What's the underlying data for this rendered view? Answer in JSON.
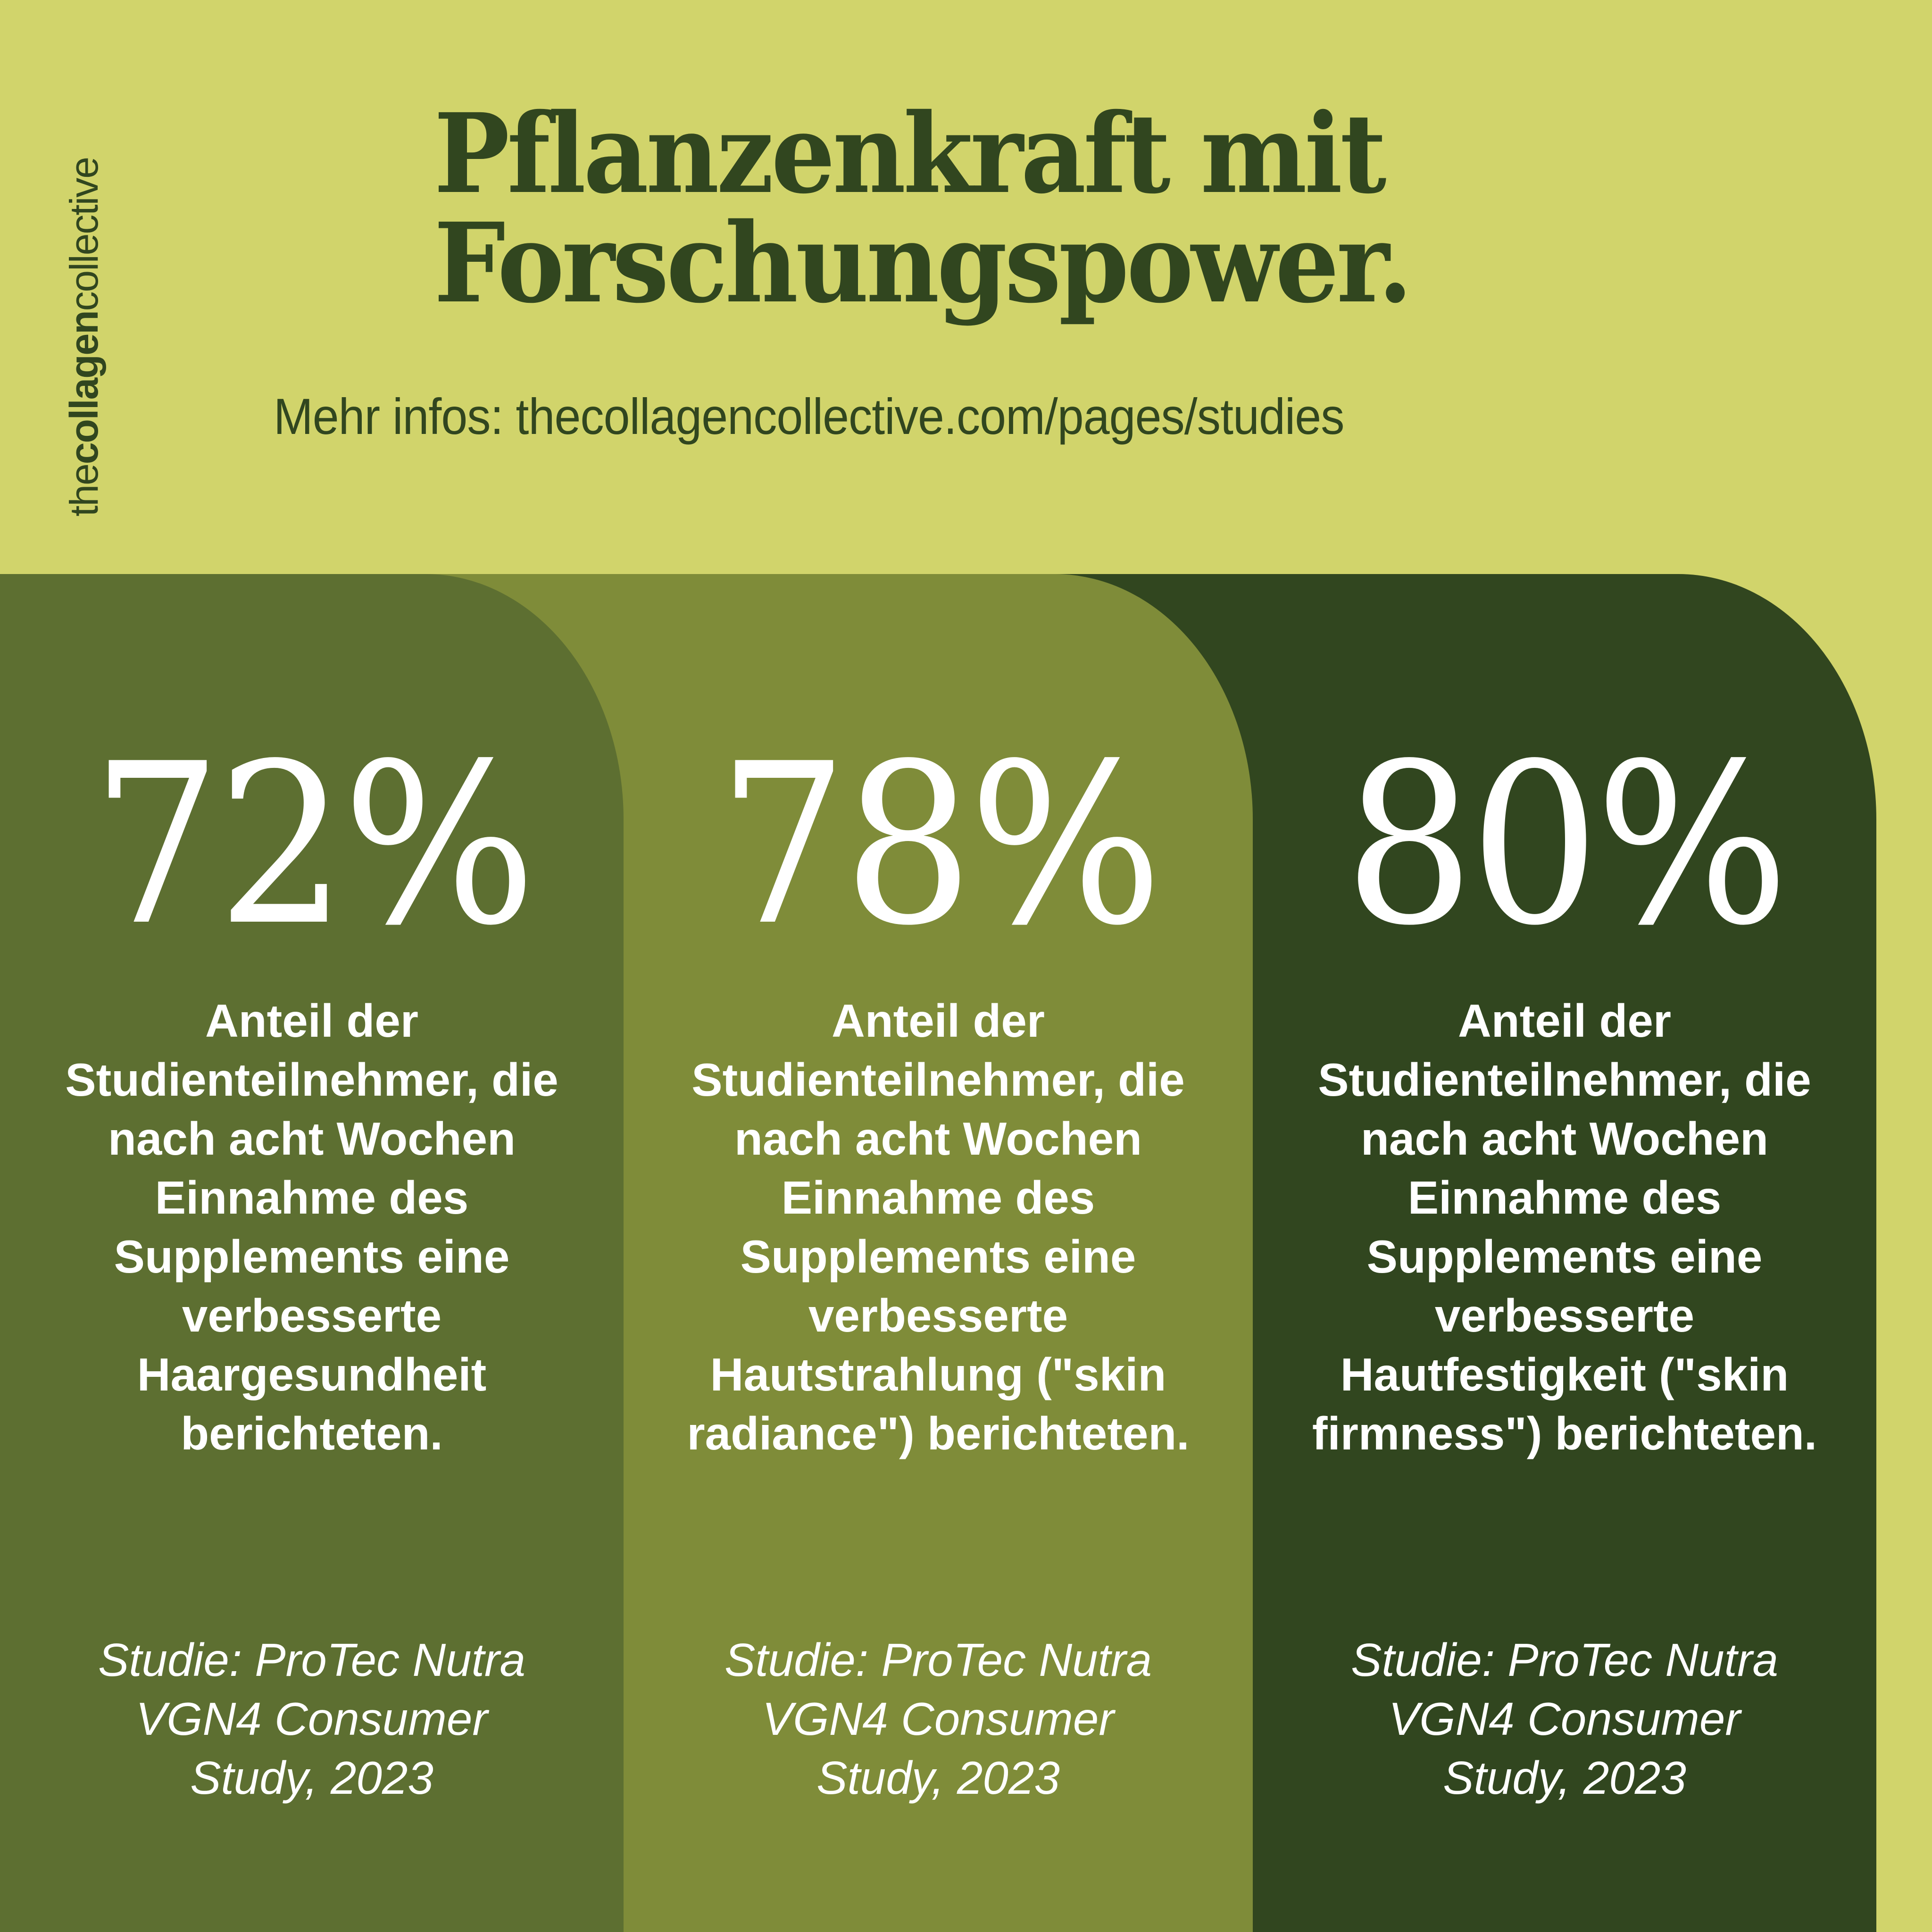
{
  "brand": {
    "bold_part": "thecollagen",
    "light_part": "collective",
    "prefix": "the",
    "bold": "collagen",
    "suffix": "collective"
  },
  "header": {
    "title_line1": "Pflanzenkraft mit",
    "title_line2": "Forschungspower.",
    "subtitle": "Mehr infos: thecollagencollective.com/pages/studies"
  },
  "colors": {
    "background": "#d1d46b",
    "panel_1": "#5d6f31",
    "panel_2": "#7f8c39",
    "panel_3": "#31461f",
    "text_dark": "#31461f",
    "text_light": "#ffffff"
  },
  "stats": [
    {
      "value": "72%",
      "description": "Anteil der Studienteilnehmer, die nach acht Wochen Einnahme des Supplements eine verbesserte Haargesundheit berichteten.",
      "citation": "Studie: ProTec Nutra VGN4 Consumer Study, 2023"
    },
    {
      "value": "78%",
      "description": "Anteil der Studienteilnehmer, die nach acht Wochen Einnahme des Supplements eine verbesserte Hautstrahlung (\"skin radiance\") berichteten.",
      "citation": "Studie: ProTec Nutra VGN4 Consumer Study, 2023"
    },
    {
      "value": "80%",
      "description": "Anteil der Studienteilnehmer, die nach acht Wochen Einnahme des Supplements eine verbesserte Hautfestigkeit (\"skin firmness\") berichteten.",
      "citation": "Studie: ProTec Nutra VGN4 Consumer Study, 2023"
    }
  ]
}
